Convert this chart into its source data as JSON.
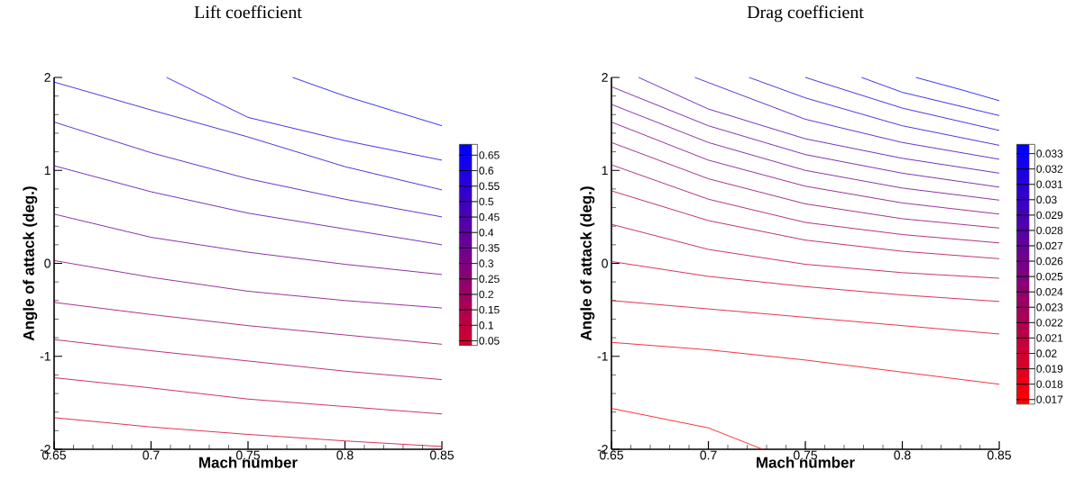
{
  "chart_data": [
    {
      "type": "line",
      "title": "Lift coefficient",
      "xlabel": "Mach number",
      "ylabel": "Angle of attack (deg.)",
      "xlim": [
        0.65,
        0.85
      ],
      "ylim": [
        -2,
        2
      ],
      "xticks": [
        0.65,
        0.7,
        0.75,
        0.8,
        0.85
      ],
      "yticks": [
        -2,
        -1,
        0,
        1,
        2
      ],
      "clim": [
        0.035,
        0.685
      ],
      "cticks": [
        0.05,
        0.1,
        0.15,
        0.2,
        0.25,
        0.3,
        0.35,
        0.4,
        0.45,
        0.5,
        0.55,
        0.6,
        0.65
      ],
      "series": [
        {
          "color": "#d4002b",
          "x": [
            0.65,
            0.7,
            0.75,
            0.8,
            0.85
          ],
          "values": [
            -1.66,
            -1.76,
            -1.84,
            -1.91,
            -1.97
          ]
        },
        {
          "color": "#bf0040",
          "x": [
            0.65,
            0.7,
            0.75,
            0.8,
            0.85
          ],
          "values": [
            -1.23,
            -1.34,
            -1.46,
            -1.54,
            -1.62
          ]
        },
        {
          "color": "#aa0055",
          "x": [
            0.65,
            0.7,
            0.75,
            0.8,
            0.85
          ],
          "values": [
            -0.82,
            -0.94,
            -1.05,
            -1.16,
            -1.25
          ]
        },
        {
          "color": "#95006a",
          "x": [
            0.65,
            0.7,
            0.75,
            0.8,
            0.85
          ],
          "values": [
            -0.42,
            -0.55,
            -0.67,
            -0.77,
            -0.87
          ]
        },
        {
          "color": "#800080",
          "x": [
            0.65,
            0.7,
            0.75,
            0.8,
            0.85
          ],
          "values": [
            0.03,
            -0.15,
            -0.3,
            -0.4,
            -0.48
          ]
        },
        {
          "color": "#6a0095",
          "x": [
            0.65,
            0.7,
            0.75,
            0.8,
            0.85
          ],
          "values": [
            0.53,
            0.28,
            0.12,
            -0.01,
            -0.12
          ]
        },
        {
          "color": "#5500aa",
          "x": [
            0.65,
            0.7,
            0.75,
            0.8,
            0.85
          ],
          "values": [
            1.05,
            0.77,
            0.54,
            0.37,
            0.2
          ]
        },
        {
          "color": "#4000bf",
          "x": [
            0.65,
            0.7,
            0.75,
            0.8,
            0.85
          ],
          "values": [
            1.52,
            1.19,
            0.91,
            0.69,
            0.5
          ]
        },
        {
          "color": "#2b00d4",
          "x": [
            0.65,
            0.7,
            0.75,
            0.8,
            0.85
          ],
          "values": [
            1.95,
            1.65,
            1.36,
            1.04,
            0.79
          ]
        },
        {
          "color": "#1500ea",
          "x": [
            0.708,
            0.75,
            0.8,
            0.85
          ],
          "values": [
            2,
            1.57,
            1.32,
            1.11
          ]
        },
        {
          "color": "#0000ff",
          "x": [
            0.773,
            0.8,
            0.85
          ],
          "values": [
            2,
            1.8,
            1.48
          ]
        }
      ]
    },
    {
      "type": "line",
      "title": "Drag coefficient",
      "xlabel": "Mach number",
      "ylabel": "Angle of attack (deg.)",
      "xlim": [
        0.65,
        0.85
      ],
      "ylim": [
        -2,
        2
      ],
      "xticks": [
        0.65,
        0.7,
        0.75,
        0.8,
        0.85
      ],
      "yticks": [
        -2,
        -1,
        0,
        1,
        2
      ],
      "clim": [
        0.0167,
        0.0336
      ],
      "cticks": [
        0.017,
        0.018,
        0.019,
        0.02,
        0.021,
        0.022,
        0.023,
        0.024,
        0.025,
        0.026,
        0.027,
        0.028,
        0.029,
        0.03,
        0.031,
        0.032,
        0.033
      ],
      "series": [
        {
          "color": "#ff0000",
          "x": [
            0.65,
            0.7,
            0.728
          ],
          "values": [
            -1.56,
            -1.77,
            -2
          ]
        },
        {
          "color": "#ef0010",
          "x": [
            0.65,
            0.7,
            0.75,
            0.8,
            0.85
          ],
          "values": [
            -0.85,
            -0.93,
            -1.04,
            -1.17,
            -1.3
          ]
        },
        {
          "color": "#df0020",
          "x": [
            0.65,
            0.7,
            0.75,
            0.8,
            0.85
          ],
          "values": [
            -0.4,
            -0.49,
            -0.58,
            -0.67,
            -0.76
          ]
        },
        {
          "color": "#cf0030",
          "x": [
            0.65,
            0.7,
            0.75,
            0.8,
            0.85
          ],
          "values": [
            0.02,
            -0.14,
            -0.25,
            -0.34,
            -0.41
          ]
        },
        {
          "color": "#bf0040",
          "x": [
            0.65,
            0.7,
            0.75,
            0.8,
            0.85
          ],
          "values": [
            0.42,
            0.15,
            -0.01,
            -0.1,
            -0.16
          ]
        },
        {
          "color": "#af0050",
          "x": [
            0.65,
            0.7,
            0.75,
            0.8,
            0.85
          ],
          "values": [
            0.78,
            0.46,
            0.25,
            0.13,
            0.05
          ]
        },
        {
          "color": "#9f0060",
          "x": [
            0.65,
            0.7,
            0.75,
            0.8,
            0.85
          ],
          "values": [
            1.06,
            0.69,
            0.44,
            0.31,
            0.22
          ]
        },
        {
          "color": "#8f0070",
          "x": [
            0.65,
            0.7,
            0.75,
            0.8,
            0.85
          ],
          "values": [
            1.3,
            0.91,
            0.64,
            0.48,
            0.38
          ]
        },
        {
          "color": "#800080",
          "x": [
            0.65,
            0.7,
            0.75,
            0.8,
            0.85
          ],
          "values": [
            1.52,
            1.11,
            0.83,
            0.65,
            0.53
          ]
        },
        {
          "color": "#70008f",
          "x": [
            0.65,
            0.7,
            0.75,
            0.8,
            0.85
          ],
          "values": [
            1.71,
            1.3,
            1.0,
            0.81,
            0.68
          ]
        },
        {
          "color": "#60009f",
          "x": [
            0.65,
            0.7,
            0.75,
            0.8,
            0.85
          ],
          "values": [
            1.9,
            1.48,
            1.17,
            0.97,
            0.82
          ]
        },
        {
          "color": "#5000af",
          "x": [
            0.664,
            0.7,
            0.75,
            0.8,
            0.85
          ],
          "values": [
            2,
            1.66,
            1.34,
            1.13,
            0.97
          ]
        },
        {
          "color": "#4000bf",
          "x": [
            0.693,
            0.75,
            0.8,
            0.85
          ],
          "values": [
            2,
            1.55,
            1.3,
            1.12
          ]
        },
        {
          "color": "#3000cf",
          "x": [
            0.721,
            0.75,
            0.8,
            0.85
          ],
          "values": [
            2,
            1.78,
            1.48,
            1.27
          ]
        },
        {
          "color": "#2000df",
          "x": [
            0.75,
            0.8,
            0.85
          ],
          "values": [
            2,
            1.67,
            1.43
          ]
        },
        {
          "color": "#1000ef",
          "x": [
            0.779,
            0.8,
            0.85
          ],
          "values": [
            2,
            1.84,
            1.59
          ]
        },
        {
          "color": "#0000ff",
          "x": [
            0.807,
            0.83,
            0.85
          ],
          "values": [
            2,
            1.87,
            1.75
          ]
        }
      ]
    }
  ]
}
